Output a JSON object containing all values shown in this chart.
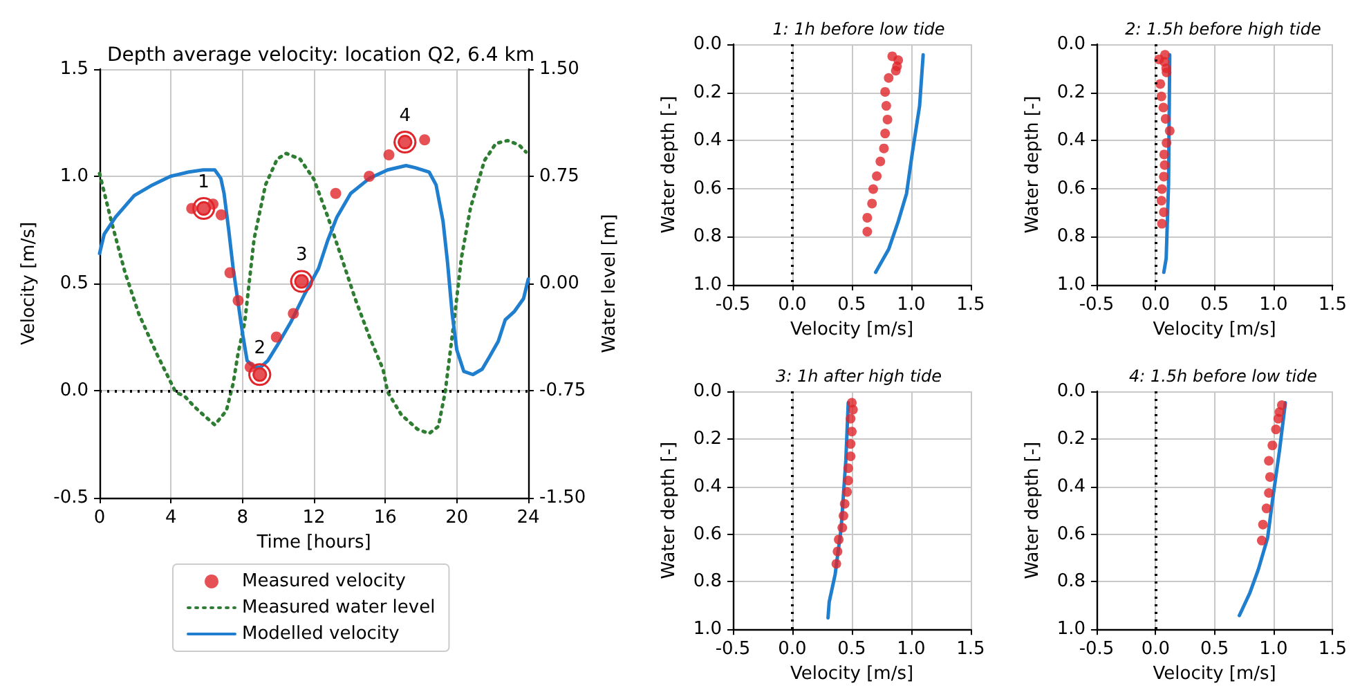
{
  "chart_data": [
    {
      "type": "line",
      "title": "Depth average velocity: location Q2, 6.4 km",
      "xlabel": "Time [hours]",
      "ylabel": "Velocity [m/s]",
      "y2label": "Water level [m]",
      "xlim": [
        0,
        24
      ],
      "xticks": [
        0,
        4,
        8,
        12,
        16,
        20,
        24
      ],
      "ylim": [
        -0.5,
        1.5
      ],
      "yticks": [
        {
          "value": -0.5,
          "label": "-0.5"
        },
        {
          "value": 0,
          "label": "0.0"
        },
        {
          "value": 0.5,
          "label": "0.5"
        },
        {
          "value": 1,
          "label": "1.0"
        },
        {
          "value": 1.5,
          "label": "1.5"
        }
      ],
      "y2lim": [
        -1.5,
        1.5
      ],
      "y2ticks": [
        {
          "value": -1.5,
          "label": "-1.50"
        },
        {
          "value": -0.75,
          "label": "-0.75"
        },
        {
          "value": 0,
          "label": "0.00"
        },
        {
          "value": 0.75,
          "label": "0.75"
        },
        {
          "value": 1.5,
          "label": "1.50"
        }
      ],
      "grid": true,
      "legend": "bottom",
      "series": [
        {
          "name": "Measured velocity",
          "type": "scatter",
          "marker": "circle",
          "color": "#e0262b",
          "x": [
            5.16,
            5.83,
            6.35,
            6.81,
            7.3,
            7.76,
            8.43,
            8.97,
            9.9,
            10.85,
            11.31,
            13.22,
            15.1,
            16.2,
            17.1,
            18.2
          ],
          "values": [
            0.85,
            0.85,
            0.87,
            0.82,
            0.55,
            0.42,
            0.11,
            0.075,
            0.25,
            0.36,
            0.51,
            0.92,
            1.0,
            1.1,
            1.16,
            1.17
          ]
        },
        {
          "name": "Measured water level",
          "type": "line",
          "line_style": "dotted",
          "axis": "y2",
          "color": "#2e7d32",
          "x": [
            0,
            0.65,
            1.42,
            2.19,
            3.23,
            4.26,
            4.77,
            5.29,
            5.81,
            6.45,
            7.1,
            7.48,
            7.74,
            8.13,
            8.65,
            9.29,
            9.94,
            10.45,
            11.23,
            12.0,
            12.77,
            13.55,
            14.32,
            15.1,
            15.87,
            16.13,
            16.9,
            17.8,
            18.45,
            18.97,
            19.35,
            19.61,
            19.87,
            20.26,
            20.77,
            21.55,
            22.19,
            22.84,
            23.48,
            23.87
          ],
          "values": [
            0.77,
            0.44,
            0.08,
            -0.21,
            -0.5,
            -0.76,
            -0.79,
            -0.86,
            -0.92,
            -0.99,
            -0.89,
            -0.7,
            -0.5,
            -0.27,
            0.31,
            0.69,
            0.87,
            0.91,
            0.87,
            0.73,
            0.47,
            0.18,
            -0.11,
            -0.37,
            -0.6,
            -0.76,
            -0.92,
            -1.02,
            -1.05,
            -1.0,
            -0.76,
            -0.5,
            -0.24,
            0.18,
            0.53,
            0.86,
            0.98,
            1.0,
            0.97,
            0.92
          ]
        },
        {
          "name": "Modelled velocity",
          "type": "line",
          "line_style": "solid",
          "color": "#1f7fce",
          "x": [
            0,
            0.26,
            0.9,
            1.94,
            2.97,
            3.97,
            5.0,
            5.8,
            6.45,
            6.79,
            6.97,
            7.23,
            7.48,
            7.74,
            8.0,
            8.26,
            8.65,
            9.03,
            9.42,
            9.94,
            10.71,
            11.48,
            12.26,
            12.77,
            13.29,
            14.06,
            15.1,
            16.13,
            17.16,
            17.68,
            18.45,
            18.84,
            19.23,
            19.48,
            19.74,
            20.0,
            20.39,
            20.9,
            21.42,
            21.81,
            22.32,
            22.71,
            23.23,
            23.74,
            24
          ],
          "values": [
            0.64,
            0.73,
            0.81,
            0.91,
            0.96,
            1.0,
            1.02,
            1.03,
            1.03,
            0.99,
            0.92,
            0.75,
            0.57,
            0.42,
            0.27,
            0.14,
            0.11,
            0.11,
            0.14,
            0.21,
            0.32,
            0.45,
            0.57,
            0.7,
            0.81,
            0.92,
            0.99,
            1.03,
            1.05,
            1.04,
            1.02,
            0.96,
            0.79,
            0.6,
            0.36,
            0.19,
            0.09,
            0.075,
            0.1,
            0.155,
            0.23,
            0.33,
            0.37,
            0.43,
            0.52
          ]
        }
      ],
      "ref_lines": [
        {
          "axis": "y",
          "value": 0,
          "color": "#000000",
          "line_style": "dotted"
        }
      ],
      "annotations": [
        {
          "text": "1",
          "x": 5.83,
          "y": 0.85
        },
        {
          "text": "2",
          "x": 8.97,
          "y": 0.075
        },
        {
          "text": "3",
          "x": 11.31,
          "y": 0.51
        },
        {
          "text": "4",
          "x": 17.1,
          "y": 1.16
        }
      ]
    },
    {
      "type": "line",
      "title": "1: 1h before low tide",
      "xlabel": "Velocity [m/s]",
      "ylabel": "Water depth [-]",
      "xlim": [
        -0.5,
        1.5
      ],
      "xticks": [
        {
          "value": -0.5,
          "label": "-0.5"
        },
        {
          "value": 0,
          "label": "0.0"
        },
        {
          "value": 0.5,
          "label": "0.5"
        },
        {
          "value": 1,
          "label": "1.0"
        },
        {
          "value": 1.5,
          "label": "1.5"
        }
      ],
      "ylim": [
        1,
        0
      ],
      "yticks": [
        {
          "value": 0,
          "label": "0.0"
        },
        {
          "value": 0.2,
          "label": "0.2"
        },
        {
          "value": 0.4,
          "label": "0.4"
        },
        {
          "value": 0.6,
          "label": "0.6"
        },
        {
          "value": 0.8,
          "label": "0.8"
        },
        {
          "value": 1,
          "label": "1.0"
        }
      ],
      "grid": true,
      "series": [
        {
          "type": "scatter",
          "marker": "circle",
          "color": "#e0262b",
          "x": [
            0.84,
            0.89,
            0.88,
            0.87,
            0.81,
            0.78,
            0.79,
            0.8,
            0.78,
            0.77,
            0.74,
            0.71,
            0.68,
            0.67,
            0.63,
            0.63
          ],
          "values": [
            0.05,
            0.066,
            0.092,
            0.11,
            0.14,
            0.198,
            0.256,
            0.313,
            0.371,
            0.433,
            0.487,
            0.548,
            0.602,
            0.662,
            0.721,
            0.779
          ]
        },
        {
          "type": "line",
          "line_style": "solid",
          "color": "#1f7fce",
          "x": [
            1.1,
            1.07,
            1.01,
            0.96,
            0.89,
            0.81,
            0.7
          ],
          "values": [
            0.044,
            0.256,
            0.448,
            0.621,
            0.737,
            0.852,
            0.948
          ]
        }
      ],
      "ref_lines": [
        {
          "axis": "x",
          "value": 0,
          "color": "#000000",
          "line_style": "dotted"
        }
      ]
    },
    {
      "type": "line",
      "title": "2: 1.5h before high tide",
      "xlabel": "Velocity [m/s]",
      "ylabel": "Water depth [-]",
      "xlim": [
        -0.5,
        1.5
      ],
      "xticks": [
        {
          "value": -0.5,
          "label": "-0.5"
        },
        {
          "value": 0,
          "label": "0.0"
        },
        {
          "value": 0.5,
          "label": "0.5"
        },
        {
          "value": 1,
          "label": "1.0"
        },
        {
          "value": 1.5,
          "label": "1.5"
        }
      ],
      "ylim": [
        1,
        0
      ],
      "yticks": [
        {
          "value": 0,
          "label": "0.0"
        },
        {
          "value": 0.2,
          "label": "0.2"
        },
        {
          "value": 0.4,
          "label": "0.4"
        },
        {
          "value": 0.6,
          "label": "0.6"
        },
        {
          "value": 0.8,
          "label": "0.8"
        },
        {
          "value": 1,
          "label": "1.0"
        }
      ],
      "grid": true,
      "series": [
        {
          "type": "scatter",
          "marker": "circle",
          "color": "#e0262b",
          "x": [
            0.08,
            0.03,
            0.075,
            0.09,
            0.093,
            0.04,
            0.05,
            0.066,
            0.085,
            0.12,
            0.093,
            0.073,
            0.077,
            0.07,
            0.054,
            0.05,
            0.07,
            0.054
          ],
          "values": [
            0.044,
            0.063,
            0.073,
            0.1,
            0.117,
            0.165,
            0.217,
            0.263,
            0.31,
            0.36,
            0.41,
            0.458,
            0.502,
            0.55,
            0.602,
            0.65,
            0.698,
            0.746
          ]
        },
        {
          "type": "line",
          "line_style": "solid",
          "color": "#1f7fce",
          "x": [
            0.12,
            0.11,
            0.09,
            0.07
          ],
          "values": [
            0.044,
            0.583,
            0.89,
            0.948
          ]
        }
      ],
      "ref_lines": [
        {
          "axis": "x",
          "value": 0,
          "color": "#000000",
          "line_style": "dotted"
        }
      ]
    },
    {
      "type": "line",
      "title": "3: 1h after high tide",
      "xlabel": "Velocity [m/s]",
      "ylabel": "Water depth [-]",
      "xlim": [
        -0.5,
        1.5
      ],
      "xticks": [
        {
          "value": -0.5,
          "label": "-0.5"
        },
        {
          "value": 0,
          "label": "0.0"
        },
        {
          "value": 0.5,
          "label": "0.5"
        },
        {
          "value": 1,
          "label": "1.0"
        },
        {
          "value": 1.5,
          "label": "1.5"
        }
      ],
      "ylim": [
        1,
        0
      ],
      "yticks": [
        {
          "value": 0,
          "label": "0.0"
        },
        {
          "value": 0.2,
          "label": "0.2"
        },
        {
          "value": 0.4,
          "label": "0.4"
        },
        {
          "value": 0.6,
          "label": "0.6"
        },
        {
          "value": 0.8,
          "label": "0.8"
        },
        {
          "value": 1,
          "label": "1.0"
        }
      ],
      "grid": true,
      "series": [
        {
          "type": "scatter",
          "marker": "circle",
          "color": "#e0262b",
          "x": [
            0.5,
            0.51,
            0.49,
            0.5,
            0.49,
            0.49,
            0.47,
            0.47,
            0.46,
            0.44,
            0.43,
            0.42,
            0.39,
            0.38,
            0.37
          ],
          "values": [
            0.048,
            0.077,
            0.115,
            0.169,
            0.221,
            0.273,
            0.323,
            0.375,
            0.423,
            0.473,
            0.523,
            0.573,
            0.623,
            0.673,
            0.725
          ]
        },
        {
          "type": "line",
          "line_style": "solid",
          "color": "#1f7fce",
          "x": [
            0.47,
            0.45,
            0.41,
            0.36,
            0.31,
            0.3
          ],
          "values": [
            0.048,
            0.288,
            0.577,
            0.769,
            0.885,
            0.952
          ]
        }
      ],
      "ref_lines": [
        {
          "axis": "x",
          "value": 0,
          "color": "#000000",
          "line_style": "dotted"
        }
      ]
    },
    {
      "type": "line",
      "title": "4: 1.5h before low tide",
      "xlabel": "Velocity [m/s]",
      "ylabel": "Water depth [-]",
      "xlim": [
        -0.5,
        1.5
      ],
      "xticks": [
        {
          "value": -0.5,
          "label": "-0.5"
        },
        {
          "value": 0,
          "label": "0.0"
        },
        {
          "value": 0.5,
          "label": "0.5"
        },
        {
          "value": 1,
          "label": "1.0"
        },
        {
          "value": 1.5,
          "label": "1.5"
        }
      ],
      "ylim": [
        1,
        0
      ],
      "yticks": [
        {
          "value": 0,
          "label": "0.0"
        },
        {
          "value": 0.2,
          "label": "0.2"
        },
        {
          "value": 0.4,
          "label": "0.4"
        },
        {
          "value": 0.6,
          "label": "0.6"
        },
        {
          "value": 0.8,
          "label": "0.8"
        },
        {
          "value": 1,
          "label": "1.0"
        }
      ],
      "grid": true,
      "series": [
        {
          "type": "scatter",
          "marker": "circle",
          "color": "#e0262b",
          "x": [
            1.07,
            1.05,
            1.04,
            1.02,
            0.99,
            0.96,
            0.97,
            0.96,
            0.94,
            0.91,
            0.9
          ],
          "values": [
            0.058,
            0.087,
            0.115,
            0.16,
            0.227,
            0.292,
            0.36,
            0.427,
            0.492,
            0.56,
            0.627
          ]
        },
        {
          "type": "line",
          "line_style": "solid",
          "color": "#1f7fce",
          "x": [
            1.1,
            1.05,
            0.99,
            0.95,
            0.87,
            0.8,
            0.71
          ],
          "values": [
            0.048,
            0.25,
            0.462,
            0.615,
            0.75,
            0.846,
            0.942
          ]
        }
      ],
      "ref_lines": [
        {
          "axis": "x",
          "value": 0,
          "color": "#000000",
          "line_style": "dotted"
        }
      ]
    }
  ]
}
